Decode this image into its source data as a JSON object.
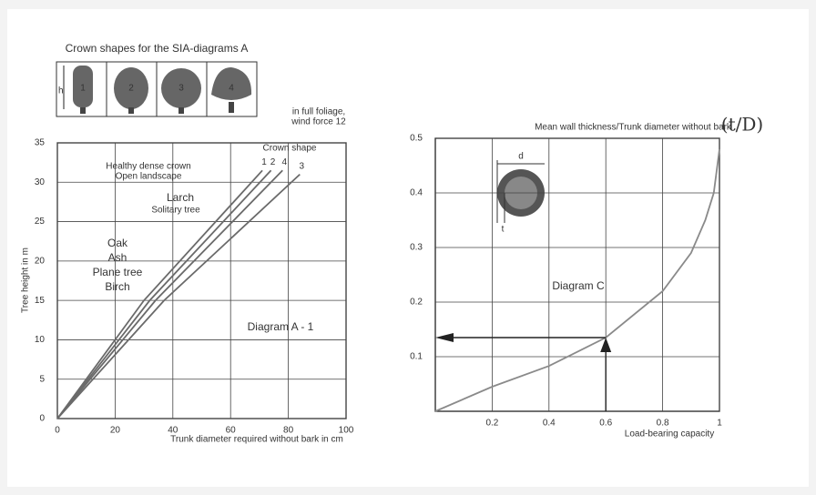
{
  "chart_data": [
    {
      "type": "line",
      "x_label": "Trunk diameter required without bark in cm",
      "y_label": "Tree height in m",
      "xlim": [
        0,
        100
      ],
      "ylim": [
        0,
        35
      ],
      "xticks": [
        0,
        20,
        40,
        60,
        80,
        100
      ],
      "yticks": [
        0,
        5,
        10,
        15,
        20,
        25,
        30,
        35
      ],
      "grid": true,
      "series": [
        {
          "name": "1",
          "color": "#6a6a6a",
          "x": [
            0,
            30,
            71
          ],
          "values": [
            0,
            15,
            31.5
          ]
        },
        {
          "name": "2",
          "color": "#6a6a6a",
          "x": [
            0,
            32,
            74
          ],
          "values": [
            0,
            15,
            31.5
          ]
        },
        {
          "name": "4",
          "color": "#6a6a6a",
          "x": [
            0,
            34,
            78
          ],
          "values": [
            0,
            15,
            31.5
          ]
        },
        {
          "name": "3",
          "color": "#6a6a6a",
          "x": [
            0,
            37,
            84
          ],
          "values": [
            0,
            15,
            31
          ]
        }
      ],
      "annotations": [
        "in full foliage,",
        "wind force 12",
        "Crown shape",
        "Healthy dense crown",
        "Open landscape",
        "Larch",
        "Solitary tree",
        "Oak",
        "Ash",
        "Plane tree",
        "Birch",
        "Diagram A - 1"
      ],
      "crown_panel": {
        "title": "Crown shapes for the SIA-diagrams A",
        "height": "h",
        "shapes": [
          "1",
          "2",
          "3",
          "4"
        ]
      }
    },
    {
      "type": "line",
      "title": "Mean wall thickness/Trunk diameter without bark",
      "x_label": "Load-bearing capacity",
      "xlim": [
        0,
        1
      ],
      "ylim": [
        0,
        0.5
      ],
      "xticks": [
        0.2,
        0.4,
        0.6,
        0.8,
        1
      ],
      "yticks": [
        0.1,
        0.2,
        0.3,
        0.4,
        0.5
      ],
      "grid": true,
      "series": [
        {
          "color": "#8a8a8a",
          "x": [
            0,
            0.2,
            0.4,
            0.6,
            0.8,
            0.9,
            0.95,
            0.98,
            1
          ],
          "values": [
            0,
            0.045,
            0.083,
            0.135,
            0.22,
            0.29,
            0.35,
            0.4,
            0.48
          ]
        }
      ],
      "arrow": {
        "x": 0.6,
        "y": 0.135
      },
      "annotations": [
        "(t/D)",
        "Diagram C",
        "d",
        "t"
      ]
    }
  ]
}
